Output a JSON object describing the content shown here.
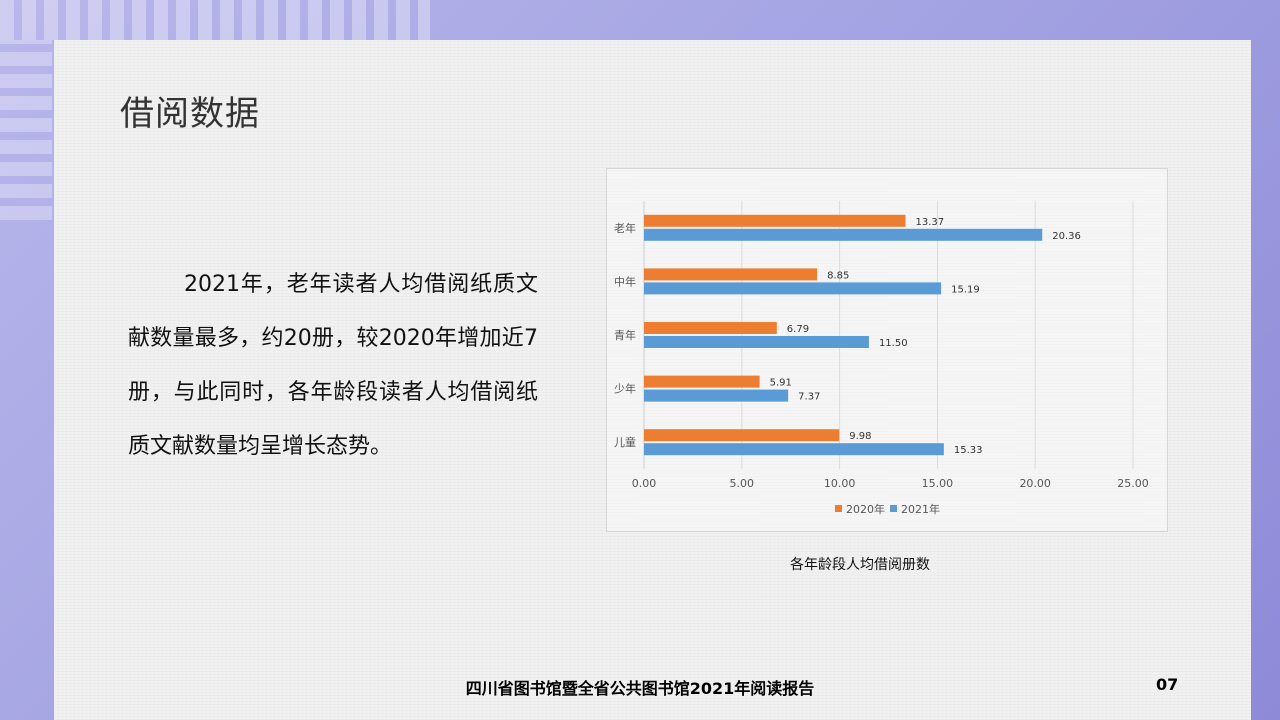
{
  "slide": {
    "title": "借阅数据",
    "body": "2021年，老年读者人均借阅纸质文献数量最多，约20册，较2020年增加近7册，与此同时，各年龄段读者人均借阅纸质文献数量均呈增长态势。",
    "caption": "各年龄段人均借阅册数",
    "footer": "四川省图书馆暨全省公共图书馆2021年阅读报告",
    "page_number": "07"
  },
  "chart_data": {
    "type": "bar",
    "orientation": "horizontal",
    "title": "",
    "xlabel": "",
    "ylabel": "",
    "categories": [
      "老年",
      "中年",
      "青年",
      "少年",
      "儿童"
    ],
    "series": [
      {
        "name": "2020年",
        "color": "#ed7d31",
        "values": [
          13.37,
          8.85,
          6.79,
          5.91,
          9.98
        ],
        "labels": [
          "13.37",
          "8.85",
          "6.79",
          "5.91",
          "9.98"
        ]
      },
      {
        "name": "2021年",
        "color": "#5b9bd5",
        "values": [
          20.36,
          15.19,
          11.5,
          7.37,
          15.33
        ],
        "labels": [
          "20.36",
          "15.19",
          "11.50",
          "7.37",
          "15.33"
        ]
      }
    ],
    "xlim": [
      0,
      25
    ],
    "ticks": [
      "0.00",
      "5.00",
      "10.00",
      "15.00",
      "20.00",
      "25.00"
    ],
    "tick_values": [
      0,
      5,
      10,
      15,
      20,
      25
    ],
    "grid": true,
    "legend_position": "bottom"
  }
}
